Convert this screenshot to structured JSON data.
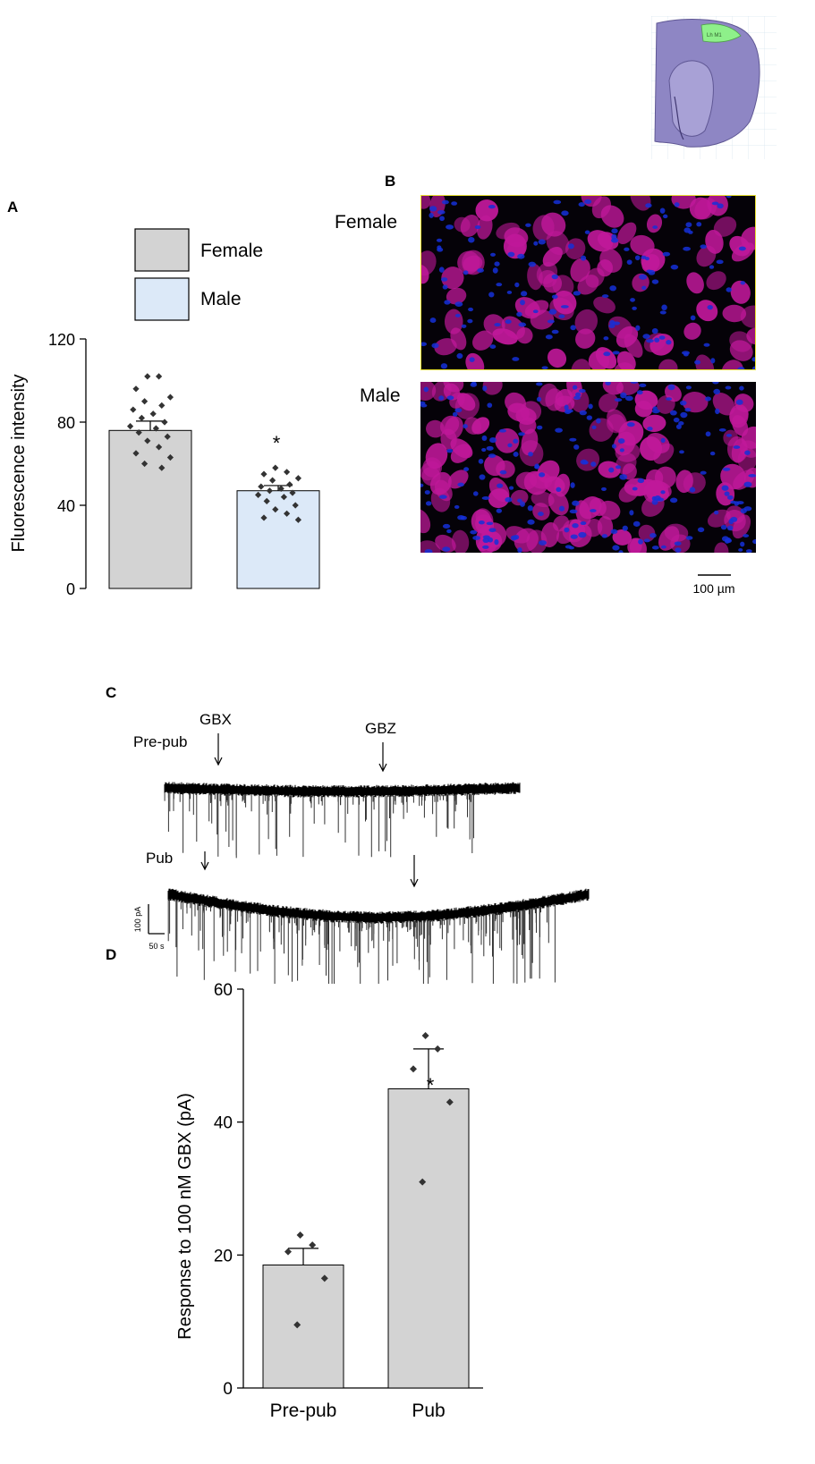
{
  "panels": {
    "a": "A",
    "b": "B",
    "c": "C",
    "d": "D"
  },
  "colors": {
    "female": "#d3d3d3",
    "male": "#dce9f8",
    "bar": "#d3d3d3",
    "point": "#333333",
    "magenta": "#c0189a",
    "blue": "#1530d8",
    "trace": "#000000"
  },
  "chart_data": [
    {
      "id": "A",
      "type": "bar",
      "ylabel": "Fluorescence intensity",
      "ylim": [
        0,
        120
      ],
      "yticks": [
        0,
        40,
        80,
        120
      ],
      "legend": [
        "Female",
        "Male"
      ],
      "legend_position": "top",
      "series": [
        {
          "name": "Female",
          "value": 76,
          "error": 4.5,
          "points": [
            102,
            102,
            96,
            92,
            90,
            88,
            86,
            84,
            82,
            80,
            78,
            77,
            75,
            73,
            71,
            68,
            65,
            63,
            60,
            58
          ]
        },
        {
          "name": "Male",
          "value": 47,
          "error": 2.5,
          "points": [
            58,
            56,
            55,
            53,
            52,
            50,
            49,
            48,
            47,
            46,
            45,
            44,
            42,
            40,
            38,
            36,
            34,
            33
          ]
        }
      ],
      "annotations": [
        "*"
      ]
    },
    {
      "id": "D",
      "type": "bar",
      "ylabel": "Response to 100 nM GBX (pA)",
      "ylim": [
        0,
        60
      ],
      "yticks": [
        0,
        20,
        40,
        60
      ],
      "categories": [
        "Pre-pub",
        "Pub"
      ],
      "series": [
        {
          "name": "Pre-pub",
          "value": 18.5,
          "error": 2.5,
          "points": [
            23,
            21.5,
            20.5,
            16.5,
            9.5
          ]
        },
        {
          "name": "Pub",
          "value": 45,
          "error": 6,
          "points": [
            53,
            51,
            48,
            43,
            31
          ]
        }
      ],
      "annotations": [
        "*"
      ]
    }
  ],
  "panel_b": {
    "labels": [
      "Female",
      "Male"
    ],
    "scale_bar": "100 µm"
  },
  "panel_c": {
    "traces": [
      "Pre-pub",
      "Pub"
    ],
    "drug_labels": [
      "GBX",
      "GBZ"
    ],
    "scale_y": "100 pA",
    "scale_x": "50 s"
  },
  "brain_inset": {
    "label": "Lh M1"
  }
}
